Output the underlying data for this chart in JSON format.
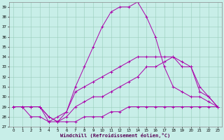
{
  "xlabel": "Windchill (Refroidissement éolien,°C)",
  "xlim": [
    -0.5,
    23.5
  ],
  "ylim": [
    27,
    39.5
  ],
  "yticks": [
    27,
    28,
    29,
    30,
    31,
    32,
    33,
    34,
    35,
    36,
    37,
    38,
    39
  ],
  "xticks": [
    0,
    1,
    2,
    3,
    4,
    5,
    6,
    7,
    8,
    9,
    10,
    11,
    12,
    13,
    14,
    15,
    16,
    17,
    18,
    19,
    20,
    21,
    22,
    23
  ],
  "bg_color": "#c8eee8",
  "grid_color": "#99ccbb",
  "line_color": "#aa00aa",
  "line1_x": [
    0,
    1,
    2,
    3,
    4,
    5,
    6,
    7,
    8,
    9,
    10,
    11,
    12,
    13,
    14,
    15,
    16,
    17,
    18,
    19,
    20,
    21,
    22,
    23
  ],
  "line1_y": [
    29,
    29,
    29,
    29,
    27.5,
    28,
    28.5,
    30.5,
    31,
    31.5,
    32,
    32.5,
    33,
    33.5,
    34,
    34,
    34,
    34,
    34,
    33,
    33,
    31,
    30,
    29
  ],
  "line2_x": [
    0,
    1,
    2,
    3,
    4,
    5,
    6,
    7,
    8,
    9,
    10,
    11,
    12,
    13,
    14,
    15,
    16,
    17,
    18,
    19,
    20,
    21,
    22,
    23
  ],
  "line2_y": [
    29,
    29,
    29,
    29,
    28,
    27.5,
    28.5,
    31,
    33,
    35,
    37,
    38.5,
    39,
    39,
    39.5,
    38,
    36,
    33,
    31,
    30.5,
    30,
    30,
    29.5,
    29
  ],
  "line3_x": [
    0,
    1,
    2,
    3,
    4,
    5,
    6,
    7,
    8,
    9,
    10,
    11,
    12,
    13,
    14,
    15,
    16,
    17,
    18,
    19,
    20,
    21,
    22,
    23
  ],
  "line3_y": [
    29,
    29,
    29,
    29,
    28,
    27.5,
    28,
    29,
    29.5,
    30,
    30,
    30.5,
    31,
    31.5,
    32,
    33,
    33,
    33.5,
    34,
    33.5,
    33,
    30.5,
    30,
    29
  ],
  "line4_x": [
    0,
    1,
    2,
    3,
    4,
    5,
    6,
    7,
    8,
    9,
    10,
    11,
    12,
    13,
    14,
    15,
    16,
    17,
    18,
    19,
    20,
    21,
    22,
    23
  ],
  "line4_y": [
    29,
    29,
    28,
    28,
    27.5,
    27.5,
    27.5,
    27.5,
    28,
    28,
    28,
    28.5,
    28.5,
    29,
    29,
    29,
    29,
    29,
    29,
    29,
    29,
    29,
    29,
    29
  ]
}
